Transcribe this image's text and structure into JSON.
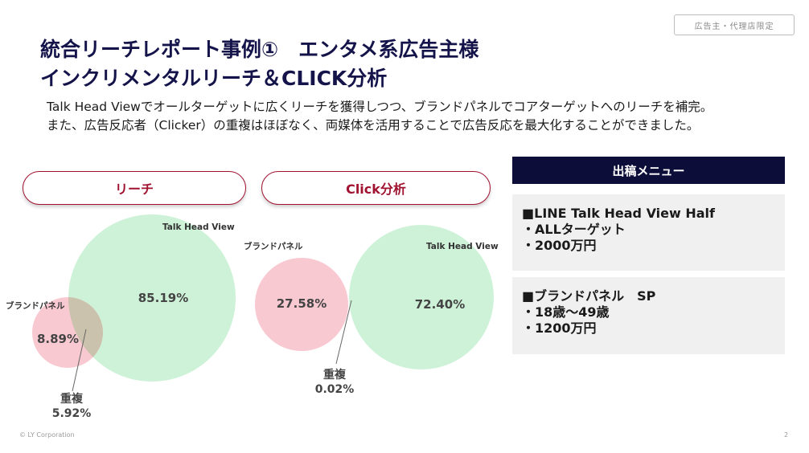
{
  "badge": "広告主・代理店限定",
  "title": {
    "line1": "統合リーチレポート事例①　エンタメ系広告主様",
    "line2": "インクリメンタルリーチ＆CLICK分析"
  },
  "lead": {
    "line1": "Talk Head Viewでオールターゲットに広くリーチを獲得しつつ、ブランドパネルでコアターゲットへのリーチを補完。",
    "line2": "また、広告反応者（Clicker）の重複はほぼなく、両媒体を活用することで広告反応を最大化することができました。"
  },
  "sections": {
    "reach": "リーチ",
    "click": "Click分析"
  },
  "colors": {
    "green": "#cdf2d8",
    "pink": "#f9c9d2",
    "overlap": "#cbc2ad",
    "accent": "#a01230",
    "navy": "#0d0d3a"
  },
  "chart_data": [
    {
      "type": "venn",
      "title": "リーチ",
      "sets": [
        {
          "name": "Talk Head View",
          "value": "85.19%"
        },
        {
          "name": "ブランドパネル",
          "value": "8.89%"
        }
      ],
      "overlap": {
        "label": "重複",
        "value": "5.92%"
      }
    },
    {
      "type": "venn",
      "title": "Click分析",
      "sets": [
        {
          "name": "ブランドパネル",
          "value": "27.58%"
        },
        {
          "name": "Talk Head View",
          "value": "72.40%"
        }
      ],
      "overlap": {
        "label": "重複",
        "value": "0.02%"
      }
    }
  ],
  "menu": {
    "header": "出稿メニュー",
    "items": [
      {
        "line1": "■LINE Talk Head View Half",
        "line2": "・ALLターゲット",
        "line3": "・2000万円"
      },
      {
        "line1": "■ブランドパネル　SP",
        "line2": "・18歳～49歳",
        "line3": "・1200万円"
      }
    ]
  },
  "footer": "© LY Corporation",
  "page_number": "2"
}
